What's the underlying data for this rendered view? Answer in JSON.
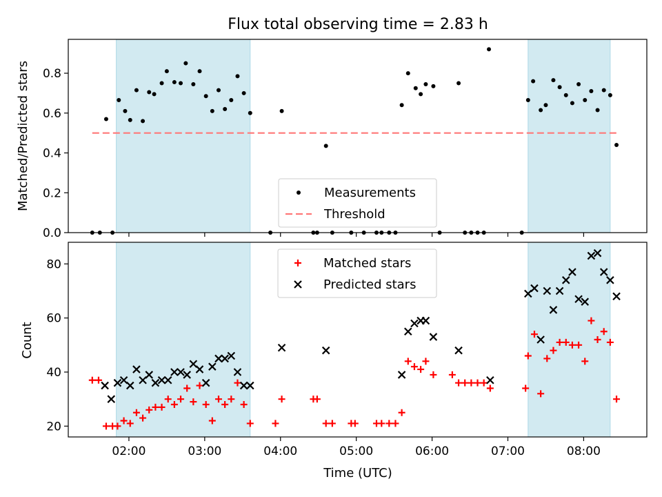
{
  "figure": {
    "title": "Flux total observing time = 2.83 h"
  },
  "chart_data": [
    {
      "type": "scatter",
      "panel": "top",
      "xlabel": "",
      "ylabel": "Matched/Predicted stars",
      "xlim": [
        "01:12",
        "08:50"
      ],
      "ylim": [
        0,
        0.97
      ],
      "yticks": [
        0.0,
        0.2,
        0.4,
        0.6,
        0.8
      ],
      "ytick_labels": [
        "0.0",
        "0.2",
        "0.4",
        "0.6",
        "0.8"
      ],
      "xticks": [
        "02:00",
        "03:00",
        "04:00",
        "05:00",
        "06:00",
        "07:00",
        "08:00"
      ],
      "grid": false,
      "legend_position": "bottom-center",
      "shaded_intervals": [
        {
          "start": "01:50",
          "end": "03:36",
          "color": "#add8e6"
        },
        {
          "start": "07:16",
          "end": "08:21",
          "color": "#add8e6"
        }
      ],
      "series": [
        {
          "name": "Measurements",
          "marker": "dot",
          "color": "#000000",
          "x": [
            "01:31",
            "01:37",
            "01:42",
            "01:47",
            "01:52",
            "01:57",
            "02:01",
            "02:06",
            "02:11",
            "02:16",
            "02:20",
            "02:26",
            "02:30",
            "02:36",
            "02:41",
            "02:45",
            "02:51",
            "02:56",
            "03:01",
            "03:06",
            "03:11",
            "03:16",
            "03:21",
            "03:26",
            "03:31",
            "03:36",
            "03:52",
            "04:01",
            "04:26",
            "04:29",
            "04:36",
            "04:41",
            "04:56",
            "05:06",
            "05:16",
            "05:20",
            "05:26",
            "05:31",
            "05:36",
            "05:41",
            "05:47",
            "05:51",
            "05:55",
            "06:01",
            "06:06",
            "06:21",
            "06:26",
            "06:31",
            "06:36",
            "06:41",
            "06:45",
            "07:11",
            "07:16",
            "07:20",
            "07:26",
            "07:30",
            "07:36",
            "07:41",
            "07:46",
            "07:51",
            "07:56",
            "08:01",
            "08:06",
            "08:11",
            "08:16",
            "08:21",
            "08:26"
          ],
          "y": [
            0.0,
            0.0,
            0.57,
            0.0,
            0.665,
            0.61,
            0.565,
            0.715,
            0.56,
            0.705,
            0.695,
            0.75,
            0.81,
            0.755,
            0.75,
            0.85,
            0.745,
            0.81,
            0.685,
            0.61,
            0.715,
            0.62,
            0.665,
            0.785,
            0.7,
            0.6,
            0.0,
            0.61,
            0.0,
            0.0,
            0.435,
            0.0,
            0.0,
            0.0,
            0.0,
            0.0,
            0.0,
            0.0,
            0.64,
            0.8,
            0.725,
            0.695,
            0.745,
            0.735,
            0.0,
            0.75,
            0.0,
            0.0,
            0.0,
            0.0,
            0.92,
            0.0,
            0.665,
            0.76,
            0.615,
            0.64,
            0.765,
            0.73,
            0.69,
            0.65,
            0.745,
            0.665,
            0.71,
            0.615,
            0.715,
            0.69,
            0.44
          ]
        },
        {
          "name": "Threshold",
          "style": "dashed",
          "color": "#ff7777",
          "x": [
            "01:31",
            "08:26"
          ],
          "y": [
            0.5,
            0.5
          ]
        }
      ]
    },
    {
      "type": "scatter",
      "panel": "bottom",
      "xlabel": "Time (UTC)",
      "ylabel": "Count",
      "xlim": [
        "01:12",
        "08:50"
      ],
      "ylim": [
        16,
        88
      ],
      "yticks": [
        20,
        40,
        60,
        80
      ],
      "xticks": [
        "02:00",
        "03:00",
        "04:00",
        "05:00",
        "06:00",
        "07:00",
        "08:00"
      ],
      "grid": false,
      "legend_position": "top-center",
      "shaded_intervals": [
        {
          "start": "01:50",
          "end": "03:36",
          "color": "#add8e6"
        },
        {
          "start": "07:16",
          "end": "08:21",
          "color": "#add8e6"
        }
      ],
      "series": [
        {
          "name": "Matched stars",
          "marker": "plus",
          "color": "#ff0000",
          "x": [
            "01:31",
            "01:36",
            "01:42",
            "01:47",
            "01:51",
            "01:56",
            "02:01",
            "02:06",
            "02:11",
            "02:16",
            "02:21",
            "02:26",
            "02:31",
            "02:36",
            "02:41",
            "02:46",
            "02:51",
            "02:56",
            "03:01",
            "03:06",
            "03:11",
            "03:16",
            "03:21",
            "03:26",
            "03:31",
            "03:36",
            "03:56",
            "04:01",
            "04:26",
            "04:29",
            "04:36",
            "04:41",
            "04:56",
            "04:59",
            "05:16",
            "05:20",
            "05:26",
            "05:31",
            "05:36",
            "05:41",
            "05:46",
            "05:51",
            "05:55",
            "06:01",
            "06:16",
            "06:21",
            "06:26",
            "06:31",
            "06:36",
            "06:41",
            "06:46",
            "07:14",
            "07:16",
            "07:21",
            "07:26",
            "07:31",
            "07:36",
            "07:41",
            "07:46",
            "07:51",
            "07:56",
            "08:01",
            "08:06",
            "08:11",
            "08:16",
            "08:21",
            "08:26"
          ],
          "y": [
            37,
            37,
            20,
            20,
            20,
            22,
            21,
            25,
            23,
            26,
            27,
            27,
            30,
            28,
            30,
            34,
            29,
            35,
            28,
            22,
            30,
            28,
            30,
            36,
            28,
            21,
            21,
            30,
            30,
            30,
            21,
            21,
            21,
            21,
            21,
            21,
            21,
            21,
            25,
            44,
            42,
            41,
            44,
            39,
            39,
            36,
            36,
            36,
            36,
            36,
            34,
            34,
            46,
            54,
            32,
            45,
            48,
            51,
            51,
            50,
            50,
            44,
            59,
            52,
            55,
            51,
            30
          ]
        },
        {
          "name": "Predicted stars",
          "marker": "x",
          "color": "#000000",
          "x": [
            "01:41",
            "01:46",
            "01:51",
            "01:56",
            "02:01",
            "02:06",
            "02:11",
            "02:16",
            "02:21",
            "02:26",
            "02:31",
            "02:36",
            "02:41",
            "02:46",
            "02:51",
            "02:56",
            "03:01",
            "03:06",
            "03:11",
            "03:16",
            "03:21",
            "03:26",
            "03:31",
            "03:36",
            "04:01",
            "04:36",
            "05:36",
            "05:41",
            "05:46",
            "05:51",
            "05:55",
            "06:01",
            "06:21",
            "06:46",
            "07:16",
            "07:21",
            "07:26",
            "07:31",
            "07:36",
            "07:41",
            "07:46",
            "07:51",
            "07:56",
            "08:01",
            "08:06",
            "08:11",
            "08:16",
            "08:21",
            "08:26"
          ],
          "y": [
            35,
            30,
            36,
            37,
            35,
            41,
            37,
            39,
            36,
            37,
            37,
            40,
            40,
            39,
            43,
            41,
            36,
            42,
            45,
            45,
            46,
            40,
            35,
            35,
            49,
            48,
            39,
            55,
            58,
            59,
            59,
            53,
            48,
            37,
            69,
            71,
            52,
            70,
            63,
            70,
            74,
            77,
            67,
            66,
            83,
            84,
            77,
            74,
            68
          ]
        }
      ]
    }
  ]
}
